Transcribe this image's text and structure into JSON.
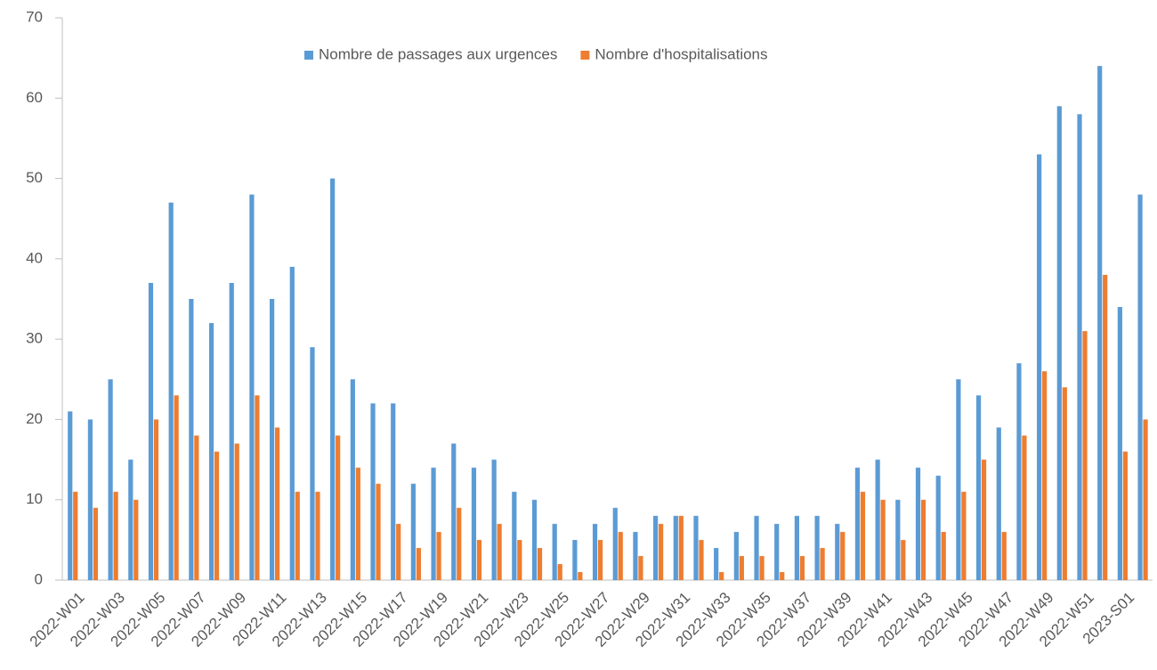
{
  "chart_data": {
    "type": "bar",
    "categories": [
      "2022-W01",
      null,
      "2022-W03",
      null,
      "2022-W05",
      null,
      "2022-W07",
      null,
      "2022-W09",
      null,
      "2022-W11",
      null,
      "2022-W13",
      null,
      "2022-W15",
      null,
      "2022-W17",
      null,
      "2022-W19",
      null,
      "2022-W21",
      null,
      "2022-W23",
      null,
      "2022-W25",
      null,
      "2022-W27",
      null,
      "2022-W29",
      null,
      "2022-W31",
      null,
      "2022-W33",
      null,
      "2022-W35",
      null,
      "2022-W37",
      null,
      "2022-W39",
      null,
      "2022-W41",
      null,
      "2022-W43",
      null,
      "2022-W45",
      null,
      "2022-W47",
      null,
      "2022-W49",
      null,
      "2022-W51",
      null,
      "2023-S01",
      null
    ],
    "series": [
      {
        "name": "Nombre de passages aux urgences",
        "color": "#5b9bd5",
        "values": [
          21,
          20,
          25,
          15,
          37,
          47,
          35,
          32,
          37,
          48,
          35,
          39,
          29,
          50,
          25,
          22,
          22,
          12,
          14,
          17,
          14,
          15,
          11,
          10,
          7,
          5,
          7,
          9,
          6,
          8,
          8,
          8,
          4,
          6,
          8,
          7,
          8,
          8,
          7,
          14,
          15,
          10,
          14,
          13,
          25,
          23,
          19,
          27,
          53,
          59,
          58,
          64,
          34,
          48
        ]
      },
      {
        "name": "Nombre d'hospitalisations",
        "color": "#ed7d31",
        "values": [
          11,
          9,
          11,
          10,
          20,
          23,
          18,
          16,
          17,
          23,
          19,
          11,
          11,
          18,
          14,
          12,
          7,
          4,
          6,
          9,
          5,
          7,
          5,
          4,
          2,
          1,
          5,
          6,
          3,
          7,
          8,
          5,
          1,
          3,
          3,
          1,
          3,
          4,
          6,
          11,
          10,
          5,
          10,
          6,
          11,
          15,
          6,
          18,
          26,
          24,
          31,
          38,
          16,
          20
        ]
      }
    ],
    "ylim": [
      0,
      70
    ],
    "yticks": [
      0,
      10,
      20,
      30,
      40,
      50,
      60,
      70
    ],
    "grid": false,
    "legend": "top"
  }
}
